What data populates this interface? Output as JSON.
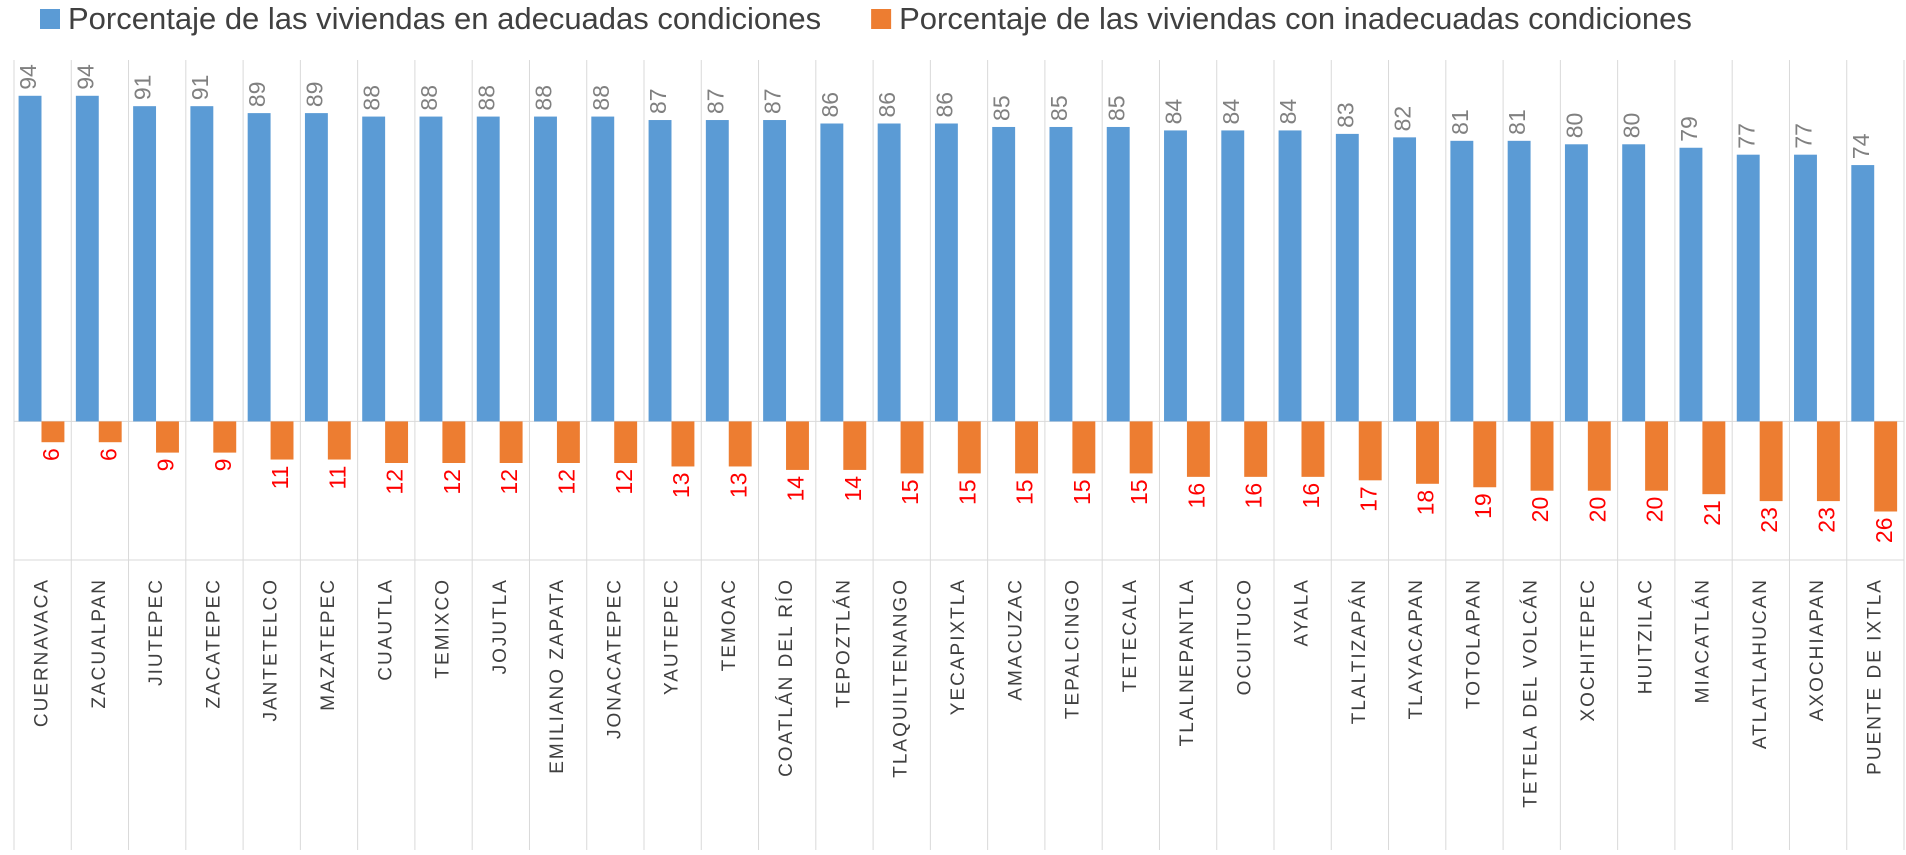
{
  "chart_data": {
    "type": "bar",
    "categories": [
      "CUERNAVACA",
      "ZACUALPAN",
      "JIUTEPEC",
      "ZACATEPEC",
      "JANTETELCO",
      "MAZATEPEC",
      "CUAUTLA",
      "TEMIXCO",
      "JOJUTLA",
      "EMILIANO ZAPATA",
      "JONACATEPEC",
      "YAUTEPEC",
      "TEMOAC",
      "COATLÁN DEL RÍO",
      "TEPOZTLÁN",
      "TLAQUILTENANGO",
      "YECAPIXTLA",
      "AMACUZAC",
      "TEPALCINGO",
      "TETECALA",
      "TLALNEPANTLA",
      "OCUITUCO",
      "AYALA",
      "TLALTIZAPÁN",
      "TLAYACAPAN",
      "TOTOLAPAN",
      "TETELA DEL VOLCÁN",
      "XOCHITEPEC",
      "HUITZILAC",
      "MIACATLÁN",
      "ATLATLAHUCAN",
      "AXOCHIAPAN",
      "PUENTE DE IXTLA"
    ],
    "series": [
      {
        "name": "Porcentaje de las viviendas en adecuadas condiciones",
        "color": "#5b9bd5",
        "label_color": "#808080",
        "values": [
          94,
          94,
          91,
          91,
          89,
          89,
          88,
          88,
          88,
          88,
          88,
          87,
          87,
          87,
          86,
          86,
          86,
          85,
          85,
          85,
          84,
          84,
          84,
          83,
          82,
          81,
          81,
          80,
          80,
          79,
          77,
          77,
          74
        ]
      },
      {
        "name": "Porcentaje de las viviendas con inadecuadas condiciones",
        "color": "#ed7d31",
        "label_color": "#ff0000",
        "values": [
          -6,
          -6,
          -9,
          -9,
          -11,
          -11,
          -12,
          -12,
          -12,
          -12,
          -12,
          -13,
          -13,
          -14,
          -14,
          -15,
          -15,
          -15,
          -15,
          -15,
          -16,
          -16,
          -16,
          -17,
          -18,
          -19,
          -20,
          -20,
          -20,
          -21,
          -23,
          -23,
          -26
        ],
        "value_labels": [
          "6",
          "6",
          "9",
          "9",
          "11",
          "11",
          "12",
          "12",
          "12",
          "12",
          "12",
          "13",
          "13",
          "14",
          "14",
          "15",
          "15",
          "15",
          "15",
          "15",
          "16",
          "16",
          "16",
          "17",
          "18",
          "19",
          "20",
          "20",
          "20",
          "21",
          "23",
          "23",
          "26"
        ]
      }
    ],
    "ylim": [
      -40,
      100
    ]
  }
}
